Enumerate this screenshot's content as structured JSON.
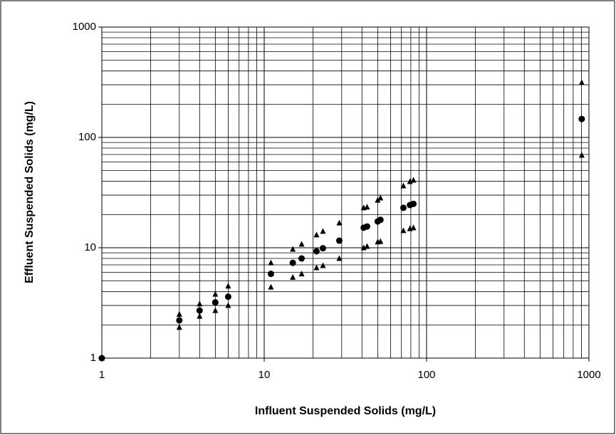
{
  "chart_data": {
    "type": "scatter",
    "x_label": "Influent Suspended Solids (mg/L)",
    "y_label": "Effluent Suspended Solids (mg/L)",
    "xscale": "log",
    "yscale": "log",
    "grid": true,
    "minor_grid": true,
    "xlim": [
      1,
      1000
    ],
    "ylim": [
      1,
      1000
    ],
    "xticks": [
      1,
      10,
      100,
      1000
    ],
    "yticks": [
      1,
      10,
      100,
      1000
    ],
    "x": [
      1,
      3,
      4,
      5,
      6,
      11,
      15,
      17,
      21,
      23,
      29,
      41,
      43,
      50,
      52,
      72,
      79,
      83,
      903
    ],
    "series": [
      {
        "marker": "circle",
        "color": "#000000",
        "values": [
          1,
          2.2,
          2.7,
          3.2,
          3.6,
          5.8,
          7.3,
          8.0,
          9.3,
          9.9,
          11.6,
          15.2,
          15.6,
          17.3,
          17.9,
          23,
          24.4,
          25,
          147
        ]
      },
      {
        "marker": "triangle",
        "color": "#000000",
        "values": [
          1,
          2.5,
          3.1,
          3.8,
          4.5,
          7.3,
          9.7,
          10.8,
          13.1,
          14.1,
          16.8,
          23,
          23.4,
          27,
          28.3,
          36.4,
          39.8,
          41,
          314
        ]
      },
      {
        "marker": "triangle",
        "color": "#000000",
        "values": [
          1,
          1.9,
          2.4,
          2.7,
          3.0,
          4.4,
          5.4,
          5.8,
          6.6,
          6.9,
          8.0,
          10,
          10.3,
          11.3,
          11.4,
          14.3,
          14.9,
          15.2,
          69
        ]
      }
    ]
  }
}
